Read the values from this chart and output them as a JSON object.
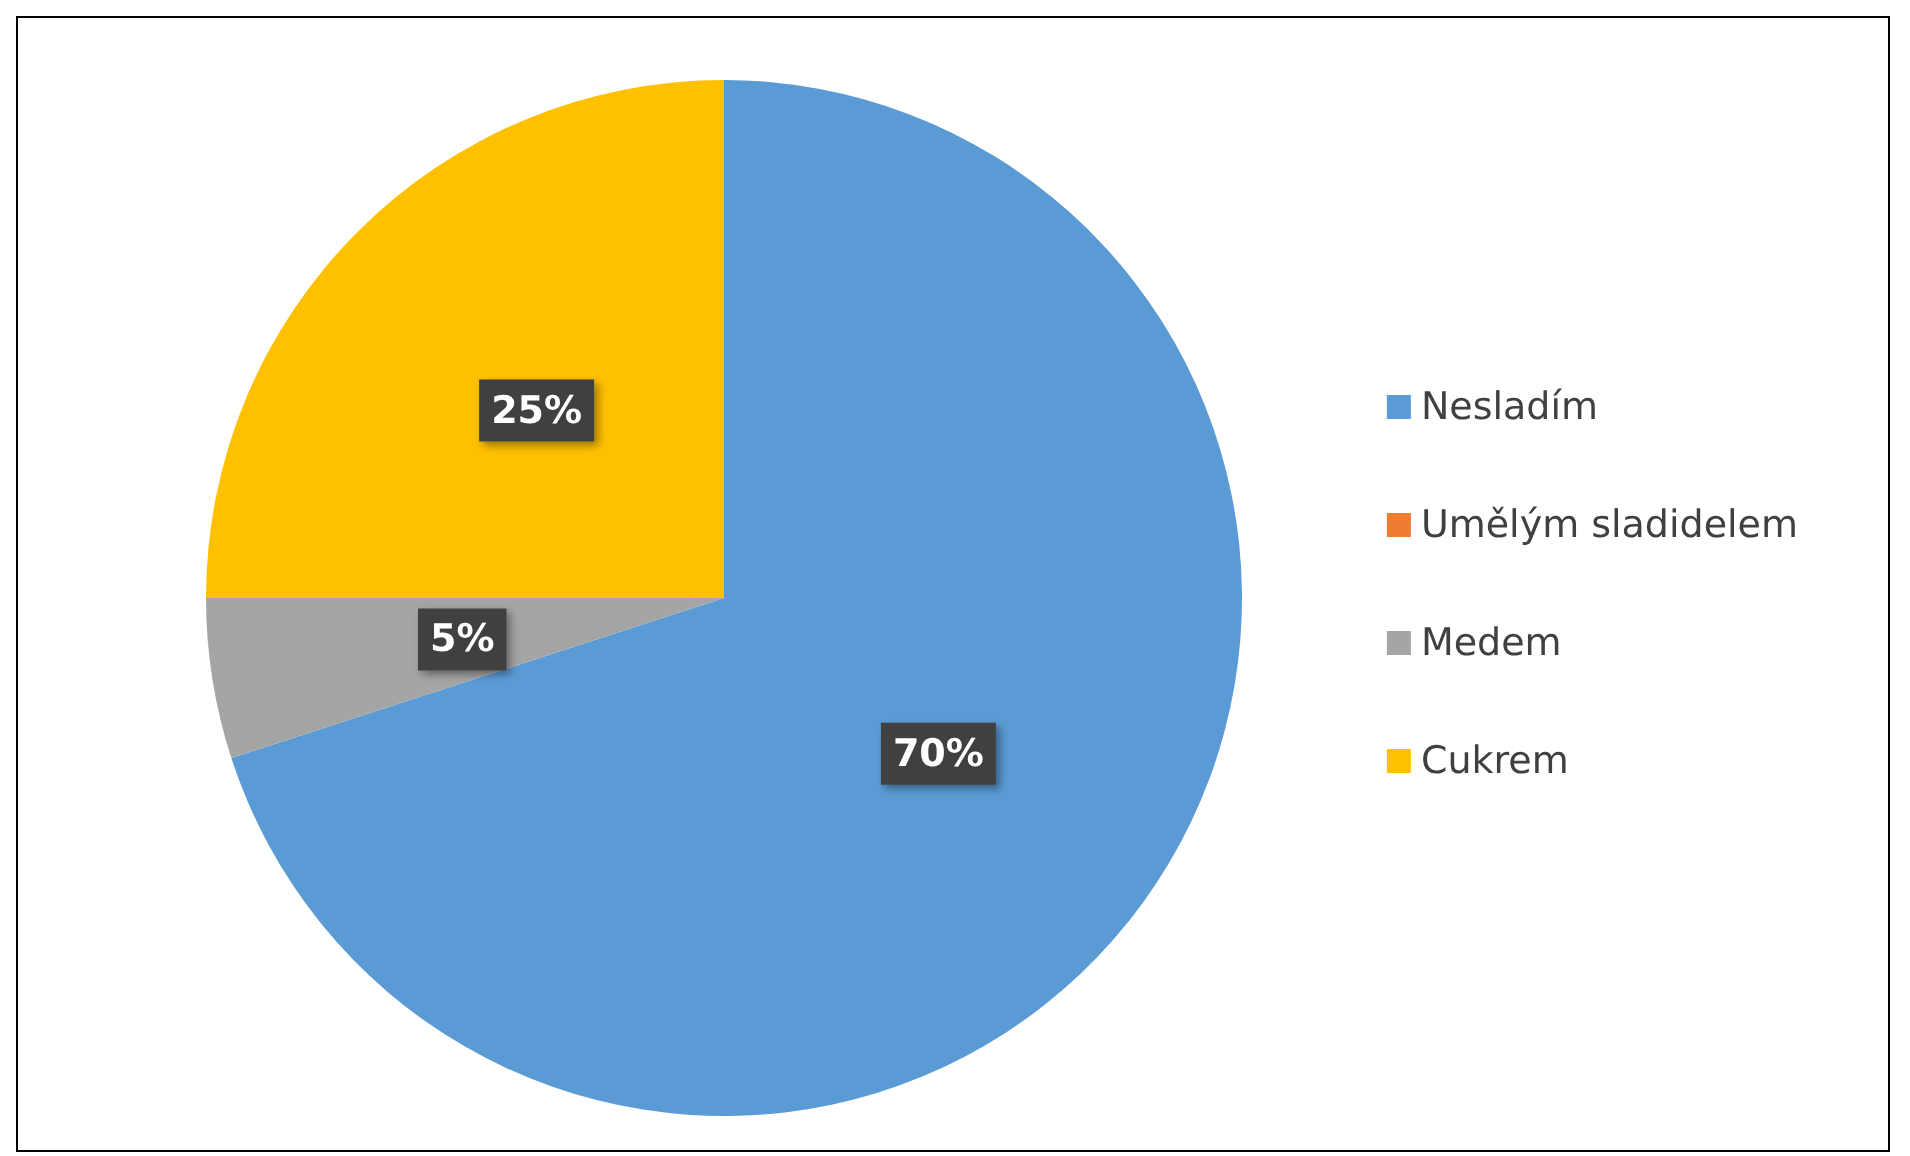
{
  "chart_data": {
    "type": "pie",
    "categories": [
      "Nesladím",
      "Umělým sladidelem",
      "Medem",
      "Cukrem"
    ],
    "values": [
      70,
      0,
      5,
      25
    ],
    "colors": [
      "#5b9bd5",
      "#ed7d31",
      "#a5a5a5",
      "#ffc000"
    ],
    "value_labels": [
      "70%",
      null,
      "5%",
      "25%"
    ],
    "legend": "right"
  }
}
